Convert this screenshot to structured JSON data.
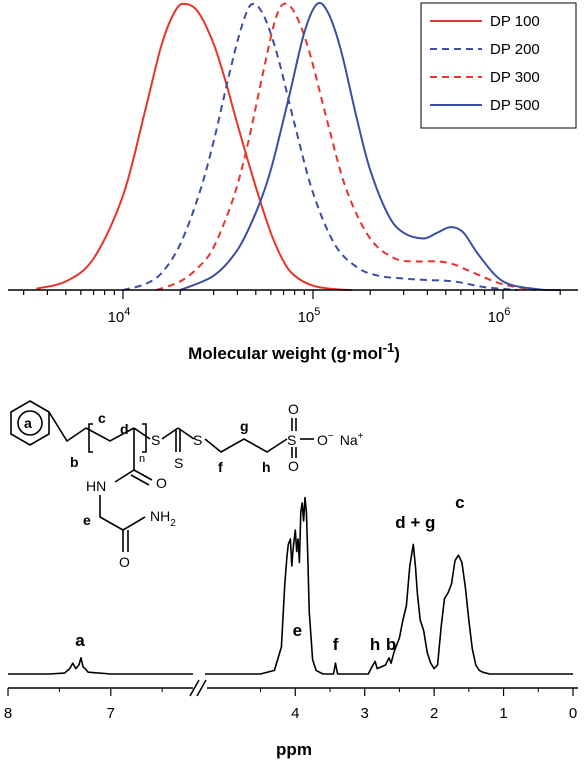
{
  "chart_data": [
    {
      "type": "line",
      "title": "",
      "xlabel_main": "Molecular weight (g·mol",
      "xlabel_sup": "-1",
      "xlabel_close": ")",
      "ylabel": "",
      "x_scale": "log",
      "xlim": [
        3000,
        3000000
      ],
      "ylim": [
        0,
        1.0
      ],
      "grid": false,
      "legend_position": "top-right",
      "tick_labels": [
        {
          "base": "10",
          "exp": "4",
          "value": 10000
        },
        {
          "base": "10",
          "exp": "5",
          "value": 100000
        },
        {
          "base": "10",
          "exp": "6",
          "value": 1000000
        }
      ],
      "series": [
        {
          "name": "DP 100",
          "color": "#e8332a",
          "dash": "solid",
          "x": [
            3500,
            5000,
            7000,
            10000,
            13000,
            16000,
            19000,
            21500,
            25000,
            30000,
            35000,
            40000,
            50000,
            60000,
            70000,
            80000,
            100000,
            130000,
            160000
          ],
          "y": [
            0.005,
            0.03,
            0.11,
            0.33,
            0.62,
            0.86,
            0.98,
            1.0,
            0.97,
            0.86,
            0.72,
            0.58,
            0.36,
            0.2,
            0.1,
            0.05,
            0.015,
            0.003,
            0.0
          ]
        },
        {
          "name": "DP 200",
          "color": "#3b4ea3",
          "dash": "dashed",
          "x": [
            10000,
            13000,
            16000,
            20000,
            25000,
            30000,
            37000,
            43000,
            48000,
            55000,
            65000,
            80000,
            100000,
            130000,
            170000,
            220000,
            300000,
            400000,
            550000,
            800000,
            1200000
          ],
          "y": [
            0.0,
            0.02,
            0.06,
            0.16,
            0.33,
            0.52,
            0.78,
            0.94,
            1.0,
            0.96,
            0.82,
            0.58,
            0.34,
            0.16,
            0.08,
            0.05,
            0.04,
            0.035,
            0.03,
            0.01,
            0.0
          ]
        },
        {
          "name": "DP 300",
          "color": "#e8332a",
          "dash": "dashed",
          "x": [
            15000,
            20000,
            25000,
            30000,
            38000,
            45000,
            55000,
            63000,
            70000,
            80000,
            95000,
            120000,
            150000,
            200000,
            270000,
            350000,
            450000,
            550000,
            700000,
            1000000,
            1500000
          ],
          "y": [
            0.0,
            0.03,
            0.08,
            0.15,
            0.32,
            0.5,
            0.77,
            0.94,
            1.0,
            0.97,
            0.84,
            0.58,
            0.35,
            0.18,
            0.11,
            0.1,
            0.1,
            0.09,
            0.06,
            0.02,
            0.0
          ]
        },
        {
          "name": "DP 500",
          "color": "#3b4ea3",
          "dash": "solid",
          "x": [
            20000,
            30000,
            40000,
            50000,
            60000,
            75000,
            90000,
            105000,
            120000,
            140000,
            170000,
            200000,
            250000,
            300000,
            380000,
            450000,
            530000,
            620000,
            750000,
            1000000,
            1500000,
            2000000
          ],
          "y": [
            0.0,
            0.05,
            0.14,
            0.27,
            0.42,
            0.68,
            0.9,
            1.0,
            0.97,
            0.84,
            0.6,
            0.42,
            0.26,
            0.2,
            0.18,
            0.2,
            0.22,
            0.2,
            0.12,
            0.03,
            0.003,
            0.0
          ]
        }
      ]
    },
    {
      "type": "line",
      "title": "",
      "xlabel": "ppm",
      "ylabel": "",
      "x_reversed": true,
      "axis_break": [
        6.2,
        5.3
      ],
      "xlim": [
        8,
        0
      ],
      "tick_labels": [
        "8",
        "7",
        "4",
        "3",
        "2",
        "1",
        "0"
      ],
      "ticks": [
        8,
        7,
        4,
        3,
        2,
        1,
        0
      ],
      "grid": false,
      "series": [
        {
          "name": "",
          "color": "#000000",
          "x": [
            8.0,
            7.6,
            7.45,
            7.4,
            7.37,
            7.34,
            7.31,
            7.29,
            7.27,
            7.25,
            7.22,
            7.0,
            6.5,
            6.2
          ],
          "y": [
            0.0,
            0.0,
            0.005,
            0.03,
            0.06,
            0.03,
            0.05,
            0.09,
            0.04,
            0.03,
            0.01,
            0.0,
            0.0,
            0.0
          ]
        },
        {
          "name": "",
          "color": "#000000",
          "x": [
            5.3,
            4.5,
            4.3,
            4.2,
            4.15,
            4.12,
            4.1,
            4.07,
            4.05,
            4.03,
            4.0,
            3.98,
            3.96,
            3.94,
            3.92,
            3.9,
            3.88,
            3.86,
            3.84,
            3.82,
            3.8,
            3.75,
            3.7,
            3.6,
            3.45,
            3.42,
            3.39,
            3.2,
            2.95,
            2.88,
            2.85,
            2.82,
            2.7,
            2.65,
            2.62,
            2.58,
            2.5,
            2.45,
            2.4,
            2.35,
            2.3,
            2.27,
            2.24,
            2.2,
            2.15,
            2.1,
            2.05,
            2.0,
            1.95,
            1.9,
            1.85,
            1.8,
            1.75,
            1.7,
            1.65,
            1.6,
            1.55,
            1.5,
            1.45,
            1.4,
            1.35,
            1.3,
            1.2,
            1.0,
            0.5,
            0.0
          ],
          "y": [
            0.0,
            0.0,
            0.02,
            0.15,
            0.5,
            0.65,
            0.72,
            0.75,
            0.6,
            0.7,
            0.8,
            0.68,
            0.75,
            0.62,
            0.9,
            0.95,
            0.85,
            0.98,
            0.9,
            0.65,
            0.35,
            0.08,
            0.02,
            0.0,
            0.0,
            0.06,
            0.0,
            0.0,
            0.0,
            0.05,
            0.07,
            0.03,
            0.05,
            0.09,
            0.06,
            0.12,
            0.2,
            0.3,
            0.38,
            0.6,
            0.72,
            0.6,
            0.44,
            0.3,
            0.24,
            0.12,
            0.06,
            0.03,
            0.05,
            0.26,
            0.42,
            0.45,
            0.5,
            0.63,
            0.66,
            0.62,
            0.48,
            0.3,
            0.14,
            0.05,
            0.02,
            0.01,
            0.0,
            0.0,
            0.0,
            0.0
          ]
        }
      ],
      "peak_labels": [
        {
          "text": "a",
          "ppm": 7.3
        },
        {
          "text": "e",
          "ppm": 3.97
        },
        {
          "text": "f",
          "ppm": 3.42
        },
        {
          "text": "h",
          "ppm": 2.85
        },
        {
          "text": "b",
          "ppm": 2.62
        },
        {
          "text": "d + g",
          "ppm": 2.27
        },
        {
          "text": "c",
          "ppm": 1.63
        }
      ]
    }
  ],
  "structure": {
    "ring_label": "a",
    "labels": {
      "b": "b",
      "c": "c",
      "d": "d",
      "n": "n",
      "e": "e",
      "f": "f",
      "g": "g",
      "h": "h"
    },
    "atoms": {
      "S1": "S",
      "S2": "S",
      "S3": "S",
      "O1": "O",
      "O2": "O",
      "O3": "O",
      "O4": "O",
      "O5": "O",
      "HN": "HN",
      "NH": "NH",
      "NH_sub": "2",
      "O_minus": "O",
      "minus": "−",
      "Na": "Na",
      "plus": "+"
    }
  }
}
